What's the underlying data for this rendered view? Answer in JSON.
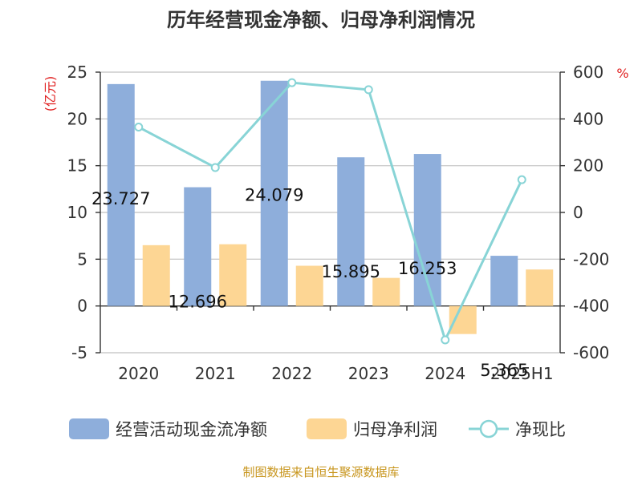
{
  "chart_data": {
    "type": "bar",
    "title": "历年经营现金净额、归母净利润情况",
    "categories": [
      "2020",
      "2021",
      "2022",
      "2023",
      "2024",
      "2025H1"
    ],
    "y_left_unit": "(亿元)",
    "y_right_unit": "%",
    "y_left_range": [
      -5,
      25
    ],
    "y_left_ticks": [
      "-5",
      "0",
      "5",
      "10",
      "15",
      "20",
      "25"
    ],
    "y_right_range": [
      -600,
      600
    ],
    "y_right_ticks": [
      "-600",
      "-400",
      "-200",
      "0",
      "200",
      "400",
      "600"
    ],
    "grid": true,
    "legend_position": "bottom",
    "series": [
      {
        "name": "经营活动现金流净额",
        "type": "bar",
        "axis": "left",
        "color": "#8eaedb",
        "values": [
          23.727,
          12.696,
          24.079,
          15.895,
          16.253,
          5.365
        ],
        "labels": [
          "23.727",
          "12.696",
          "24.079",
          "15.895",
          "16.253",
          "5.365"
        ]
      },
      {
        "name": "归母净利润",
        "type": "bar",
        "axis": "left",
        "color": "#fdd694",
        "values": [
          6.5,
          6.6,
          4.3,
          3.0,
          -3.0,
          3.9
        ]
      },
      {
        "name": "净现比",
        "type": "line",
        "axis": "right",
        "color": "#88d4d6",
        "values": [
          365,
          192,
          555,
          525,
          -545,
          140
        ]
      }
    ],
    "source_note": "制图数据来自恒生聚源数据库"
  }
}
